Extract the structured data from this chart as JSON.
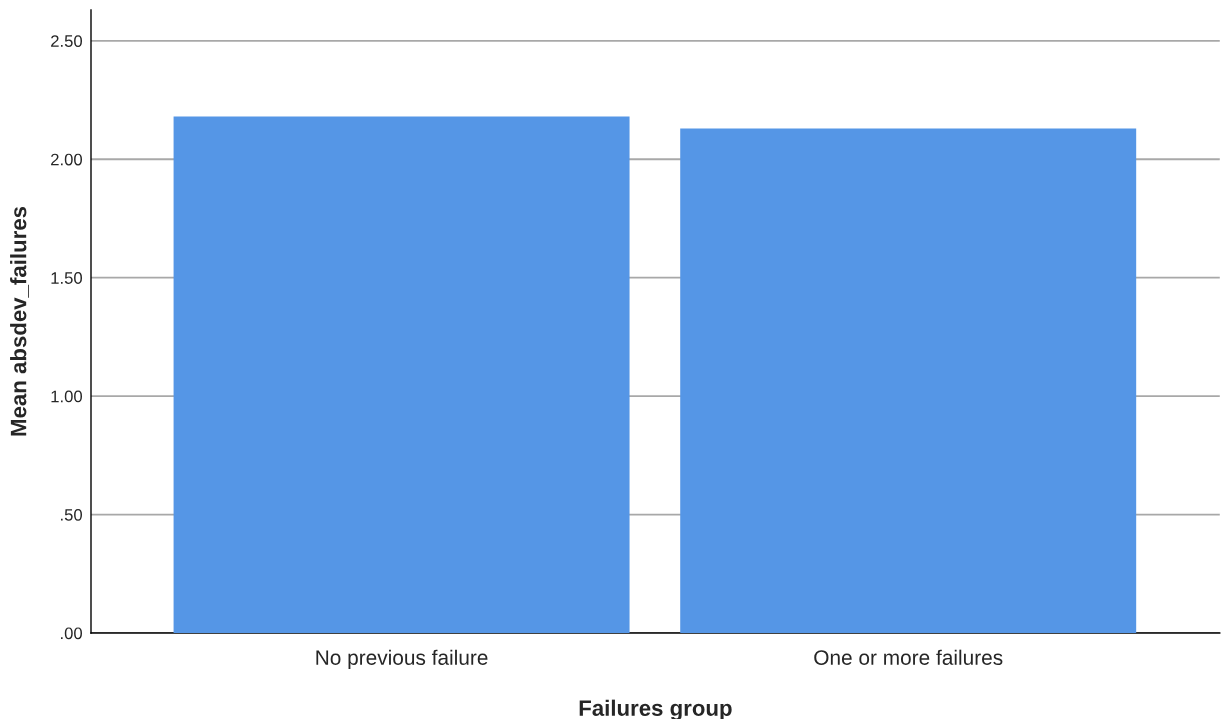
{
  "chart_data": {
    "type": "bar",
    "xlabel": "Failures group",
    "ylabel": "Mean absdev_failures",
    "categories": [
      "No previous failure",
      "One or more failures"
    ],
    "values": [
      2.18,
      2.13
    ],
    "color": "#5596e6",
    "ylim": [
      0,
      2.63
    ],
    "yticks": [
      {
        "value": 0,
        "label": ".00"
      },
      {
        "value": 0.5,
        "label": ".50"
      },
      {
        "value": 1.0,
        "label": "1.00"
      },
      {
        "value": 1.5,
        "label": "1.50"
      },
      {
        "value": 2.0,
        "label": "2.00"
      },
      {
        "value": 2.5,
        "label": "2.50"
      }
    ],
    "grid": "y"
  }
}
